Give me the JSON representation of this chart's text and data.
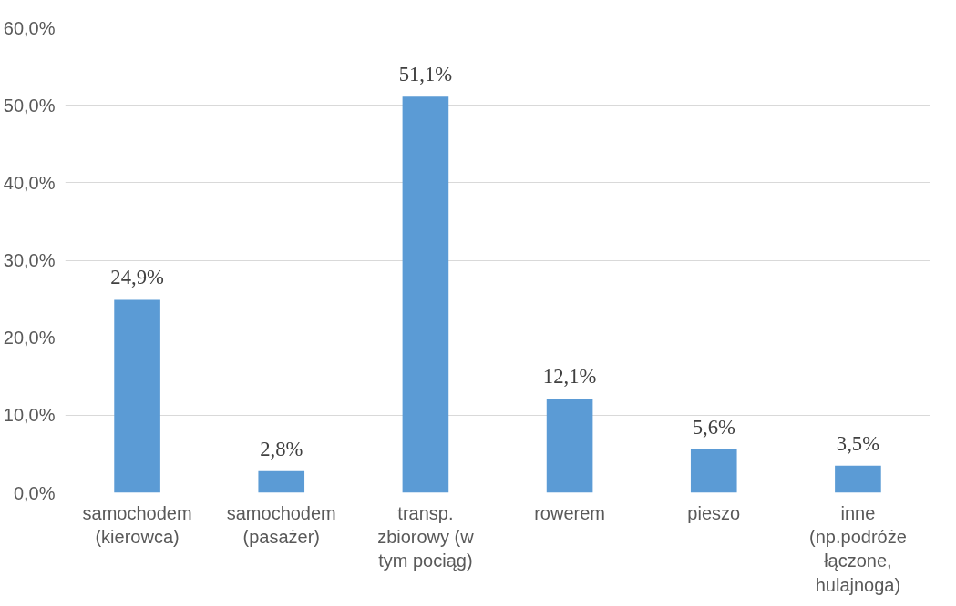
{
  "chart_data": {
    "type": "bar",
    "categories": [
      "samochodem (kierowca)",
      "samochodem (pasażer)",
      "transp. zbiorowy (w tym pociąg)",
      "rowerem",
      "pieszo",
      "inne (np.podróże łączone, hulajnoga)"
    ],
    "values": [
      24.9,
      2.8,
      51.1,
      12.1,
      5.6,
      3.5
    ],
    "value_labels": [
      "24,9%",
      "2,8%",
      "51,1%",
      "12,1%",
      "5,6%",
      "3,5%"
    ],
    "color": "#5b9bd5",
    "ylim": [
      0,
      60
    ],
    "yticks": [
      {
        "value": 0,
        "label": "0,0%"
      },
      {
        "value": 10,
        "label": "10,0%"
      },
      {
        "value": 20,
        "label": "20,0%"
      },
      {
        "value": 30,
        "label": "30,0%"
      },
      {
        "value": 40,
        "label": "40,0%"
      },
      {
        "value": 50,
        "label": "50,0%"
      },
      {
        "value": 60,
        "label": "60,0%"
      }
    ],
    "grid": "y"
  }
}
